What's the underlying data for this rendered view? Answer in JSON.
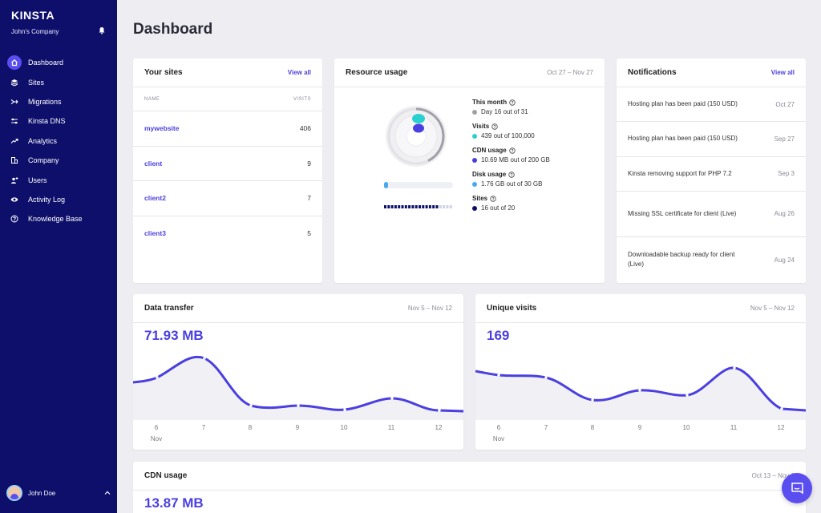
{
  "sidebar": {
    "logo": "KINSTA",
    "company": "John's Company",
    "items": [
      {
        "label": "Dashboard",
        "icon": "home-icon"
      },
      {
        "label": "Sites",
        "icon": "layers-icon"
      },
      {
        "label": "Migrations",
        "icon": "migrate-icon"
      },
      {
        "label": "Kinsta DNS",
        "icon": "dns-icon"
      },
      {
        "label": "Analytics",
        "icon": "trend-icon"
      },
      {
        "label": "Company",
        "icon": "building-icon"
      },
      {
        "label": "Users",
        "icon": "add-user-icon"
      },
      {
        "label": "Activity Log",
        "icon": "eye-icon"
      },
      {
        "label": "Knowledge Base",
        "icon": "question-icon"
      }
    ],
    "active_item": "Dashboard",
    "user_name": "John Doe"
  },
  "page": {
    "title": "Dashboard"
  },
  "sites_card": {
    "title": "Your sites",
    "link": "View all",
    "col_name": "NAME",
    "col_visits": "VISITS",
    "rows": [
      {
        "name": "mywebsite",
        "visits": "406"
      },
      {
        "name": "client",
        "visits": "9"
      },
      {
        "name": "client2",
        "visits": "7"
      },
      {
        "name": "client3",
        "visits": "5"
      }
    ]
  },
  "resource_card": {
    "title": "Resource usage",
    "date": "Oct 27 – Nov 27",
    "items": [
      {
        "label": "This month",
        "value": "Day 16 out of 31",
        "color": "#a0a0a8"
      },
      {
        "label": "Visits",
        "value": "439 out of 100,000",
        "color": "#2ad0d0"
      },
      {
        "label": "CDN usage",
        "value": "10.69 MB out of 200 GB",
        "color": "#4a3fe0"
      },
      {
        "label": "Disk usage",
        "value": "1.76 GB out of 30 GB",
        "color": "#4aa8f0"
      },
      {
        "label": "Sites",
        "value": "16 out of 20",
        "color": "#0d0f6b"
      }
    ]
  },
  "notifications_card": {
    "title": "Notifications",
    "link": "View all",
    "rows": [
      {
        "text": "Hosting plan has been paid (150 USD)",
        "date": "Oct 27"
      },
      {
        "text": "Hosting plan has been paid (150 USD)",
        "date": "Sep 27"
      },
      {
        "text": "Kinsta removing support for PHP 7.2",
        "date": "Sep 3"
      },
      {
        "text": "Missing SSL certificate for client (Live)",
        "date": "Aug 26"
      },
      {
        "text": "Downloadable backup ready for client (Live)",
        "date": "Aug 24"
      }
    ]
  },
  "data_transfer": {
    "title": "Data transfer",
    "date": "Nov 5 – Nov 12",
    "value": "71.93 MB",
    "x_labels": [
      "6",
      "7",
      "8",
      "9",
      "10",
      "11",
      "12"
    ],
    "month_label": "Nov"
  },
  "unique_visits": {
    "title": "Unique visits",
    "date": "Nov 5 – Nov 12",
    "value": "169",
    "x_labels": [
      "6",
      "7",
      "8",
      "9",
      "10",
      "11",
      "12"
    ],
    "month_label": "Nov"
  },
  "cdn_usage": {
    "title": "CDN usage",
    "date": "Oct 13 – Nov 1",
    "value": "13.87 MB"
  },
  "colors": {
    "accent": "#4a3fe0",
    "sidebar": "#0d0f6b"
  }
}
